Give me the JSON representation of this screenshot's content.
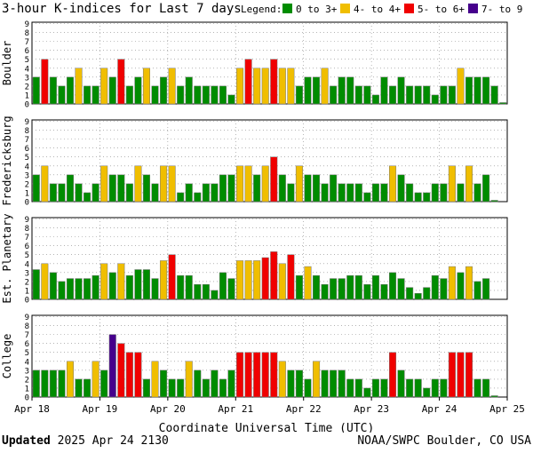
{
  "chart_data": {
    "type": "bar",
    "title": "3-hour K-indices for Last 7 days",
    "legend": {
      "label": "Legend:",
      "items": [
        {
          "label": "0 to 3+",
          "color": "#008c00"
        },
        {
          "label": "4- to 4+",
          "color": "#f0be00"
        },
        {
          "label": "5- to 6+",
          "color": "#f00000"
        },
        {
          "label": "7- to 9",
          "color": "#46008c"
        }
      ]
    },
    "xlabel": "Coordinate Universal Time (UTC)",
    "x_ticks": [
      "Apr 18",
      "Apr 19",
      "Apr 20",
      "Apr 21",
      "Apr 22",
      "Apr 23",
      "Apr 24",
      "Apr 25"
    ],
    "ylim": [
      0,
      9
    ],
    "y_ticks": [
      "0",
      "1",
      "2",
      "3",
      "4",
      "5",
      "6",
      "7",
      "8",
      "9"
    ],
    "bars_per_day": 8,
    "series": [
      {
        "name": "Boulder",
        "values": [
          3,
          5,
          3,
          2,
          3,
          4,
          2,
          2,
          4,
          3,
          5,
          2,
          3,
          4,
          2,
          3,
          4,
          2,
          3,
          2,
          2,
          2,
          2,
          1,
          4,
          5,
          4,
          4,
          5,
          4,
          4,
          2,
          3,
          3,
          4,
          2,
          3,
          3,
          2,
          2,
          1,
          3,
          2,
          3,
          2,
          2,
          2,
          1,
          2,
          2,
          4,
          3,
          3,
          3,
          2,
          0.15
        ]
      },
      {
        "name": "Fredericksburg",
        "values": [
          3,
          4,
          2,
          2,
          3,
          2,
          1,
          2,
          4,
          3,
          3,
          2,
          4,
          3,
          2,
          4,
          4,
          1,
          2,
          1,
          2,
          2,
          3,
          3,
          4,
          4,
          3,
          4,
          5,
          3,
          2,
          4,
          3,
          3,
          2,
          3,
          2,
          2,
          2,
          1,
          2,
          2,
          4,
          3,
          2,
          1,
          1,
          2,
          2,
          4,
          2,
          4,
          2,
          3,
          0.15
        ]
      },
      {
        "name": "Est. Planetary",
        "values": [
          3.33,
          4,
          3,
          2,
          2.33,
          2.33,
          2.33,
          2.67,
          4,
          3,
          4,
          2.67,
          3.33,
          3.33,
          2.33,
          4.33,
          5,
          2.67,
          2.67,
          1.67,
          1.67,
          1,
          3,
          2.33,
          4.33,
          4.33,
          4.33,
          4.67,
          5.33,
          4,
          5,
          2.67,
          3.67,
          2.67,
          1.67,
          2.33,
          2.33,
          2.67,
          2.67,
          1.67,
          2.67,
          1.67,
          3,
          2.33,
          1.33,
          0.67,
          1.33,
          2.67,
          2.33,
          3.67,
          3,
          3.67,
          2,
          2.33
        ]
      },
      {
        "name": "College",
        "values": [
          3,
          3,
          3,
          3,
          4,
          2,
          2,
          4,
          3,
          7,
          6,
          5,
          5,
          2,
          4,
          3,
          2,
          2,
          4,
          3,
          2,
          3,
          2,
          3,
          5,
          5,
          5,
          5,
          5,
          4,
          3,
          3,
          2,
          4,
          3,
          3,
          3,
          2,
          2,
          1,
          2,
          2,
          5,
          3,
          2,
          2,
          1,
          2,
          2,
          5,
          5,
          5,
          2,
          2,
          0.15
        ]
      }
    ]
  },
  "footer": {
    "updated_label": "Updated",
    "updated_time": " 2025 Apr 24 2130",
    "credit": "NOAA/SWPC Boulder, CO USA"
  }
}
